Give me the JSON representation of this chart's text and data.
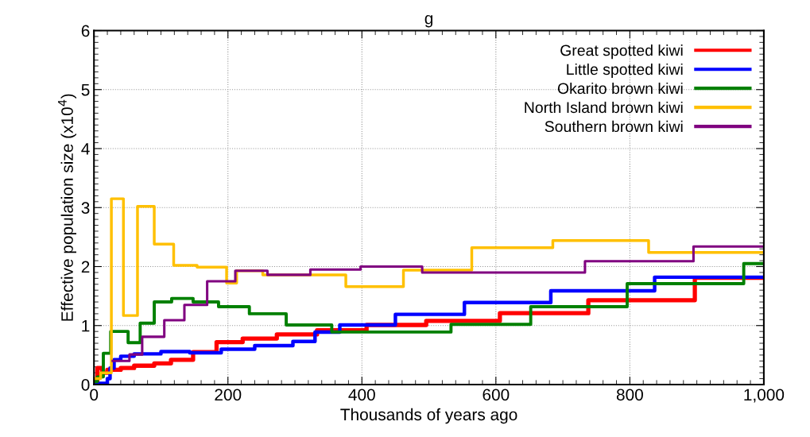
{
  "chart_data": {
    "type": "step",
    "title": "g",
    "xlabel": "Thousands of years ago",
    "ylabel": "Effective population size (x10$^{4}$)",
    "xlim": [
      0,
      1000
    ],
    "ylim": [
      0,
      6
    ],
    "xticks": [
      0,
      200,
      400,
      600,
      {
        "value": 800,
        "label": "800"
      },
      {
        "value": 1000,
        "label": "1,000"
      }
    ],
    "yticks": [
      0,
      1,
      2,
      3,
      4,
      5,
      6
    ],
    "grid": true,
    "legend": "top right",
    "line_style": "solid",
    "marker": "none",
    "series": [
      {
        "name": "Great spotted kiwi",
        "color": "#ff0000",
        "x": [
          0,
          5,
          12,
          20,
          40,
          60,
          90,
          115,
          148,
          183,
          222,
          273,
          333,
          407,
          496,
          606,
          738,
          897,
          1000
        ],
        "values": [
          0.05,
          0.28,
          0.2,
          0.25,
          0.28,
          0.32,
          0.36,
          0.42,
          0.55,
          0.72,
          0.78,
          0.85,
          0.92,
          1.01,
          1.08,
          1.21,
          1.43,
          1.81,
          1.81
        ]
      },
      {
        "name": "Little spotted kiwi",
        "color": "#0000ff",
        "x": [
          0,
          20,
          24,
          30,
          40,
          60,
          100,
          143,
          190,
          240,
          297,
          330,
          367,
          450,
          553,
          682,
          837,
          1000
        ],
        "values": [
          0.02,
          0.1,
          0.28,
          0.42,
          0.48,
          0.52,
          0.56,
          0.54,
          0.6,
          0.66,
          0.73,
          0.89,
          1.01,
          1.19,
          1.39,
          1.59,
          1.82,
          1.82
        ]
      },
      {
        "name": "Okarito brown kiwi",
        "color": "#008000",
        "x": [
          0,
          5,
          14,
          25,
          51,
          69,
          90,
          116,
          148,
          186,
          232,
          287,
          355,
          533,
          652,
          796,
          970,
          1000
        ],
        "values": [
          0.05,
          0.13,
          0.53,
          0.9,
          0.71,
          1.04,
          1.4,
          1.46,
          1.4,
          1.32,
          1.2,
          1.01,
          0.89,
          1.02,
          1.32,
          1.71,
          2.05,
          2.05
        ]
      },
      {
        "name": "North Island brown kiwi",
        "color": "#ffc000",
        "x": [
          0,
          10,
          26,
          44,
          65,
          90,
          119,
          154,
          198,
          213,
          252,
          376,
          462,
          564,
          685,
          828,
          1000
        ],
        "values": [
          0.1,
          0.2,
          3.15,
          1.17,
          3.02,
          2.38,
          2.02,
          1.99,
          1.72,
          1.93,
          1.86,
          1.66,
          1.94,
          2.32,
          2.44,
          2.24,
          2.24
        ]
      },
      {
        "name": "Southern brown kiwi",
        "color": "#800080",
        "x": [
          28,
          53,
          72,
          105,
          135,
          169,
          211,
          259,
          323,
          398,
          490,
          733,
          895,
          1000
        ],
        "values": [
          0.4,
          0.51,
          0.81,
          1.09,
          1.35,
          1.75,
          1.93,
          1.86,
          1.95,
          2.0,
          1.9,
          2.09,
          2.34,
          2.34
        ]
      }
    ]
  }
}
